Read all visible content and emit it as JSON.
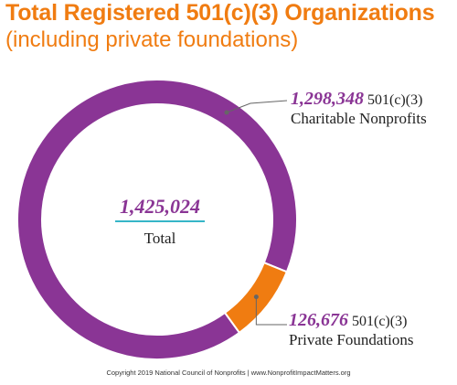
{
  "chart_data": {
    "type": "pie",
    "title": "Total Registered 501(c)(3) Organizations",
    "subtitle": "(including private foundations)",
    "total_value": "1,425,024",
    "total_label": "Total",
    "slices": [
      {
        "value": 1298348,
        "value_label": "1,298,348",
        "suffix": "501(c)(3)",
        "label": "Charitable Nonprofits",
        "color": "#8a3595"
      },
      {
        "value": 126676,
        "value_label": "126,676",
        "suffix": "501(c)(3)",
        "label": "Private Foundations",
        "color": "#f07c11"
      }
    ]
  },
  "colors": {
    "title": "#f07c11",
    "subtitle": "#f07c11",
    "center_number": "#8a3595",
    "center_rule": "#36b6c8",
    "callout_number": "#8a3595",
    "text": "#222222",
    "leader": "#666666"
  },
  "footer": "Copyright 2019 National Council of Nonprofits | www.NonprofitImpactMatters.org"
}
